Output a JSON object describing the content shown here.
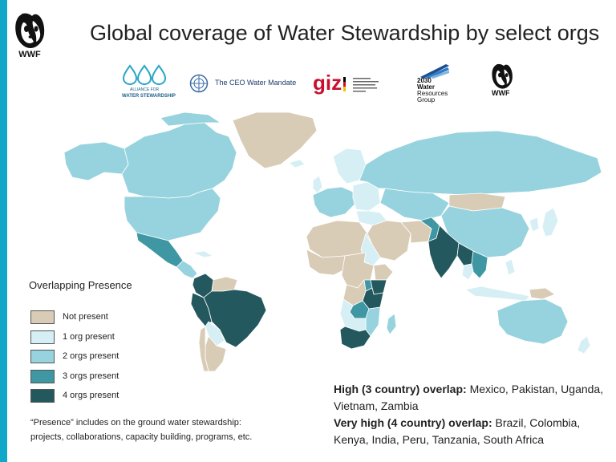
{
  "header": {
    "title": "Global coverage of Water Stewardship by select orgs",
    "wwf_logo_text": "WWF"
  },
  "partner_logos": {
    "aws_line1": "ALLIANCE FOR",
    "aws_line2": "WATER STEWARDSHIP",
    "ceo_mandate": "The CEO Water Mandate",
    "giz": "giz",
    "wrg_line1": "2030",
    "wrg_line2": "Water",
    "wrg_line3": "Resources",
    "wrg_line4": "Group",
    "wwf": "WWF"
  },
  "legend": {
    "title": "Overlapping Presence",
    "items": [
      {
        "label": "Not present",
        "color": "#d9ccb6"
      },
      {
        "label": "1 org present",
        "color": "#d6eff4"
      },
      {
        "label": "2 orgs present",
        "color": "#97d3de"
      },
      {
        "label": "3 orgs present",
        "color": "#3e97a3"
      },
      {
        "label": "4 orgs present",
        "color": "#24585f"
      }
    ]
  },
  "footnote": {
    "line1": "“Presence” includes on the ground water stewardship:",
    "line2": "projects, collaborations, capacity building, programs, etc."
  },
  "overlap": {
    "high_label": "High (3 country) overlap:",
    "high_countries": "Mexico, Pakistan, Uganda, Vietnam, Zambia",
    "very_high_label": "Very high (4 country) overlap:",
    "very_high_countries": "Brazil, Colombia, Kenya, India, Peru, Tanzania, South Africa"
  },
  "colors": {
    "accent_bar": "#0fa8c9",
    "not_present": "#d9ccb6",
    "one_org": "#d6eff4",
    "two_orgs": "#97d3de",
    "three_orgs": "#3e97a3",
    "four_orgs": "#24585f"
  }
}
